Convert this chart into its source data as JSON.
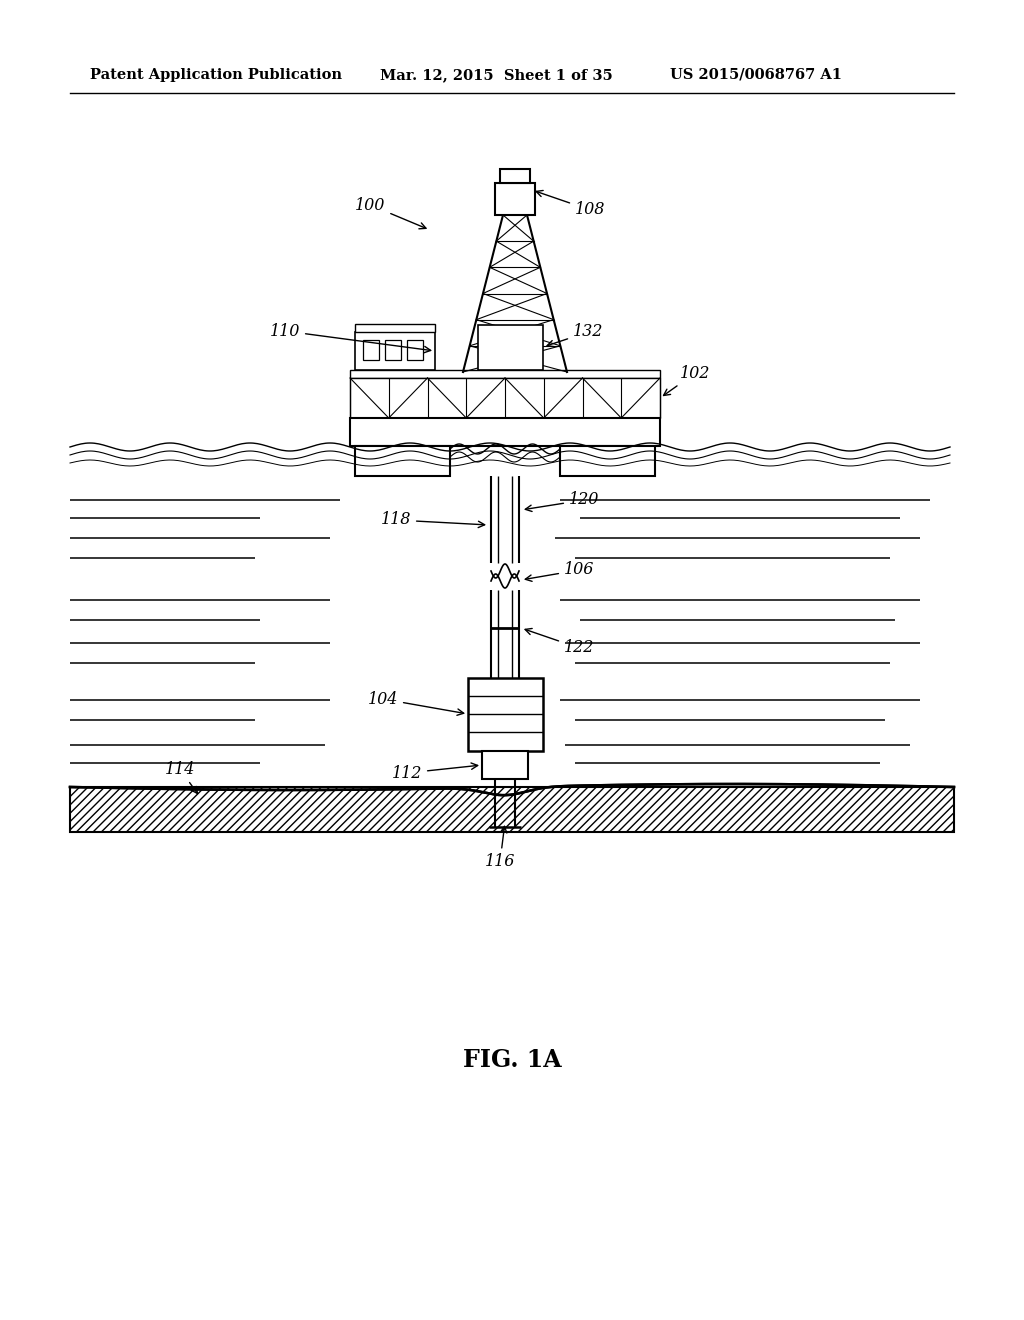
{
  "header_left": "Patent Application Publication",
  "header_mid": "Mar. 12, 2015  Sheet 1 of 35",
  "header_right": "US 2015/0068767 A1",
  "figure_label": "FIG. 1A",
  "bg_color": "#ffffff",
  "line_color": "#000000"
}
